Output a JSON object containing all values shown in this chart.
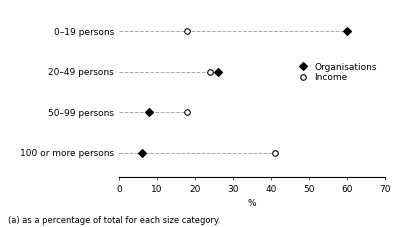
{
  "categories": [
    "0–19 persons",
    "20–49 persons",
    "50–99 persons",
    "100 or more persons"
  ],
  "organisations": [
    60,
    26,
    8,
    6
  ],
  "income": [
    18,
    24,
    18,
    41
  ],
  "xlim": [
    0,
    70
  ],
  "xticks": [
    0,
    10,
    20,
    30,
    40,
    50,
    60,
    70
  ],
  "xlabel": "%",
  "footnote": "(a) as a percentage of total for each size category.",
  "legend_org": "Organisations",
  "legend_inc": "Income",
  "marker_org": "D",
  "marker_inc": "o",
  "marker_color_org": "black",
  "marker_color_inc": "white",
  "marker_edge_color": "black",
  "marker_size": 4,
  "line_color": "#aaaaaa",
  "line_style": "--",
  "line_width": 0.7,
  "bg_color": "white",
  "font_size_labels": 6.5,
  "font_size_tick": 6.5,
  "font_size_footnote": 6.0,
  "font_size_legend": 6.5
}
